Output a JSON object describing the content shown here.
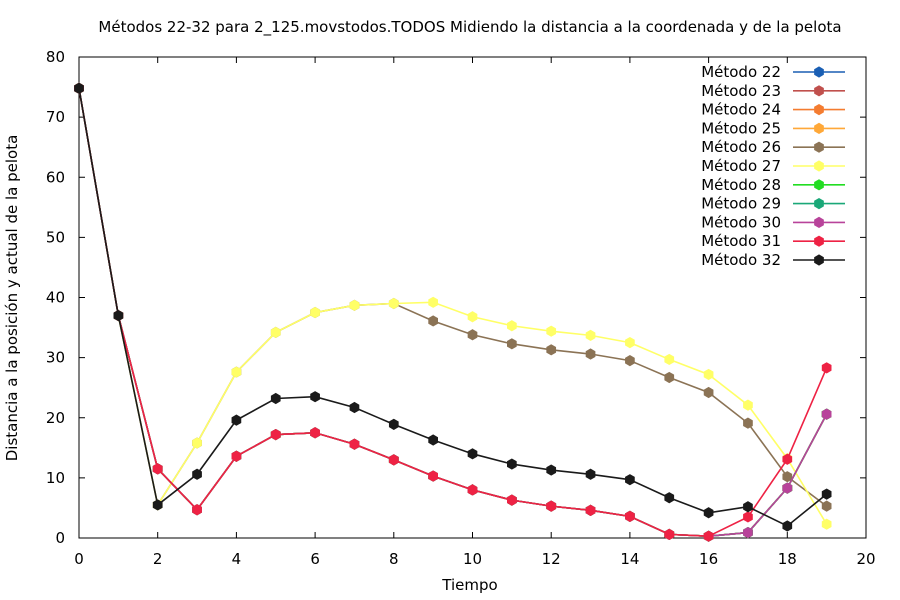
{
  "chart_data": {
    "type": "line",
    "title": "Métodos 22-32 para 2_125.movstodos.TODOS Midiendo la distancia a la coordenada y de la pelota",
    "xlabel": "Tiempo",
    "ylabel": "Distancia a la posición y actual de la pelota",
    "xlim": [
      0,
      20
    ],
    "ylim": [
      0,
      80
    ],
    "xticks": [
      0,
      2,
      4,
      6,
      8,
      10,
      12,
      14,
      16,
      18,
      20
    ],
    "yticks": [
      0,
      10,
      20,
      30,
      40,
      50,
      60,
      70,
      80
    ],
    "grid": false,
    "legend_position": "top-right",
    "series": [
      {
        "name": "Método 22",
        "color": "#1a5fb4",
        "x": [
          0,
          1,
          2,
          3,
          4,
          5,
          6,
          7,
          8,
          9,
          10,
          11,
          12,
          13,
          14,
          15,
          16,
          17,
          18,
          19
        ],
        "y": [
          74.8,
          37.0,
          11.5,
          4.7,
          13.6,
          17.2,
          17.5,
          15.6,
          13.0,
          10.3,
          8.0,
          6.3,
          5.3,
          4.6,
          3.6,
          0.6,
          0.3,
          0.9,
          8.3,
          20.6
        ]
      },
      {
        "name": "Método 23",
        "color": "#c0504d",
        "x": [
          0,
          1,
          2,
          3,
          4,
          5,
          6,
          7,
          8,
          9,
          10,
          11,
          12,
          13,
          14,
          15,
          16,
          17,
          18,
          19
        ],
        "y": [
          74.8,
          37.0,
          11.5,
          4.7,
          13.6,
          17.2,
          17.5,
          15.6,
          13.0,
          10.3,
          8.0,
          6.3,
          5.3,
          4.6,
          3.6,
          0.6,
          0.3,
          0.9,
          8.3,
          20.6
        ]
      },
      {
        "name": "Método 24",
        "color": "#f47c30",
        "x": [
          0,
          1,
          2,
          3,
          4,
          5,
          6,
          7,
          8,
          9,
          10,
          11,
          12,
          13,
          14,
          15,
          16,
          17,
          18,
          19
        ],
        "y": [
          74.8,
          37.0,
          11.5,
          4.7,
          13.6,
          17.2,
          17.5,
          15.6,
          13.0,
          10.3,
          8.0,
          6.3,
          5.3,
          4.6,
          3.6,
          0.6,
          0.3,
          0.9,
          8.3,
          20.6
        ]
      },
      {
        "name": "Método 25",
        "color": "#ffa838",
        "x": [
          0,
          1,
          2,
          3,
          4,
          5,
          6,
          7,
          8,
          9,
          10,
          11,
          12,
          13,
          14,
          15,
          16,
          17,
          18,
          19
        ],
        "y": [
          74.8,
          37.0,
          11.5,
          4.7,
          13.6,
          17.2,
          17.5,
          15.6,
          13.0,
          10.3,
          8.0,
          6.3,
          5.3,
          4.6,
          3.6,
          0.6,
          0.3,
          0.9,
          8.3,
          20.6
        ]
      },
      {
        "name": "Método 26",
        "color": "#8b7355",
        "x": [
          0,
          1,
          2,
          3,
          4,
          5,
          6,
          7,
          8,
          9,
          10,
          11,
          12,
          13,
          14,
          15,
          16,
          17,
          18,
          19
        ],
        "y": [
          74.8,
          37.0,
          5.5,
          15.8,
          27.6,
          34.2,
          37.5,
          38.7,
          39.0,
          36.1,
          33.8,
          32.3,
          31.3,
          30.6,
          29.5,
          26.7,
          24.2,
          19.1,
          10.2,
          5.3
        ]
      },
      {
        "name": "Método 27",
        "color": "#ffff66",
        "x": [
          0,
          1,
          2,
          3,
          4,
          5,
          6,
          7,
          8,
          9,
          10,
          11,
          12,
          13,
          14,
          15,
          16,
          17,
          18,
          19
        ],
        "y": [
          74.8,
          37.0,
          5.5,
          15.8,
          27.6,
          34.2,
          37.5,
          38.7,
          39.0,
          39.2,
          36.8,
          35.3,
          34.4,
          33.7,
          32.5,
          29.7,
          27.2,
          22.1,
          13.2,
          2.3
        ]
      },
      {
        "name": "Método 28",
        "color": "#22dd22",
        "x": [
          0,
          1,
          2,
          3,
          4,
          5,
          6,
          7,
          8,
          9,
          10,
          11,
          12,
          13,
          14,
          15,
          16,
          17,
          18,
          19
        ],
        "y": [
          74.8,
          37.0,
          11.5,
          4.7,
          13.6,
          17.2,
          17.5,
          15.6,
          13.0,
          10.3,
          8.0,
          6.3,
          5.3,
          4.6,
          3.6,
          0.6,
          0.3,
          0.9,
          8.3,
          20.6
        ]
      },
      {
        "name": "Método 29",
        "color": "#1aa878",
        "x": [
          0,
          1,
          2,
          3,
          4,
          5,
          6,
          7,
          8,
          9,
          10,
          11,
          12,
          13,
          14,
          15,
          16,
          17,
          18,
          19
        ],
        "y": [
          74.8,
          37.0,
          11.5,
          4.7,
          13.6,
          17.2,
          17.5,
          15.6,
          13.0,
          10.3,
          8.0,
          6.3,
          5.3,
          4.6,
          3.6,
          0.6,
          0.3,
          0.9,
          8.3,
          20.6
        ]
      },
      {
        "name": "Método 30",
        "color": "#b8439a",
        "x": [
          0,
          1,
          2,
          3,
          4,
          5,
          6,
          7,
          8,
          9,
          10,
          11,
          12,
          13,
          14,
          15,
          16,
          17,
          18,
          19
        ],
        "y": [
          74.8,
          37.0,
          11.5,
          4.7,
          13.6,
          17.2,
          17.5,
          15.6,
          13.0,
          10.3,
          8.0,
          6.3,
          5.3,
          4.6,
          3.6,
          0.6,
          0.3,
          0.9,
          8.3,
          20.6
        ]
      },
      {
        "name": "Método 31",
        "color": "#ee2244",
        "x": [
          0,
          1,
          2,
          3,
          4,
          5,
          6,
          7,
          8,
          9,
          10,
          11,
          12,
          13,
          14,
          15,
          16,
          17,
          18,
          19
        ],
        "y": [
          74.8,
          37.0,
          11.5,
          4.7,
          13.6,
          17.2,
          17.5,
          15.6,
          13.0,
          10.3,
          8.0,
          6.3,
          5.3,
          4.6,
          3.6,
          0.6,
          0.3,
          3.5,
          13.1,
          28.3
        ]
      },
      {
        "name": "Método 32",
        "color": "#1a1a1a",
        "x": [
          0,
          1,
          2,
          3,
          4,
          5,
          6,
          7,
          8,
          9,
          10,
          11,
          12,
          13,
          14,
          15,
          16,
          17,
          18,
          19
        ],
        "y": [
          74.8,
          37.0,
          5.5,
          10.6,
          19.6,
          23.2,
          23.5,
          21.7,
          18.9,
          16.3,
          14.0,
          12.3,
          11.3,
          10.6,
          9.7,
          6.7,
          4.2,
          5.2,
          2.0,
          7.3
        ]
      }
    ]
  }
}
